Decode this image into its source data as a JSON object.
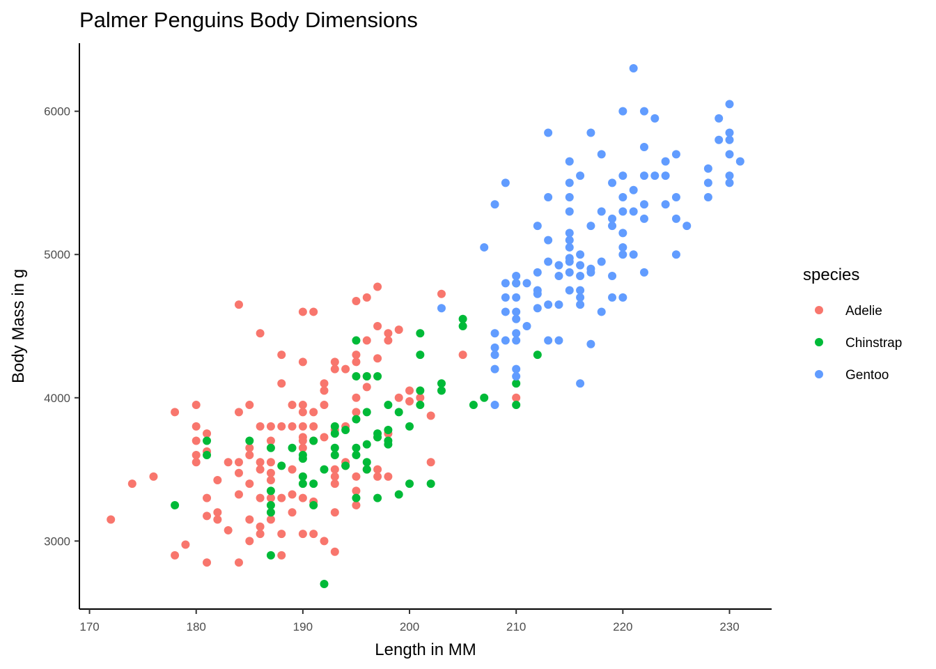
{
  "chart_data": {
    "type": "scatter",
    "title": "Palmer Penguins Body Dimensions",
    "xlabel": "Length in MM",
    "ylabel": "Body Mass in g",
    "xlim": [
      169.05,
      233.95
    ],
    "ylim": [
      2525,
      6475
    ],
    "x_ticks": [
      170,
      180,
      190,
      200,
      210,
      220,
      230
    ],
    "y_ticks": [
      3000,
      4000,
      5000,
      6000
    ],
    "grid": false,
    "legend": {
      "title": "species",
      "position": "right"
    },
    "series": [
      {
        "name": "Adelie",
        "color": "#F8766D",
        "points": [
          [
            172,
            3150
          ],
          [
            174,
            3400
          ],
          [
            176,
            3450
          ],
          [
            178,
            3900
          ],
          [
            178,
            2900
          ],
          [
            179,
            2975
          ],
          [
            180,
            3950
          ],
          [
            180,
            3800
          ],
          [
            180,
            3700
          ],
          [
            180,
            3600
          ],
          [
            180,
            3550
          ],
          [
            181,
            3750
          ],
          [
            181,
            3625
          ],
          [
            181,
            3300
          ],
          [
            181,
            3175
          ],
          [
            181,
            2850
          ],
          [
            182,
            3425
          ],
          [
            182,
            3200
          ],
          [
            182,
            3150
          ],
          [
            183,
            3550
          ],
          [
            183,
            3075
          ],
          [
            184,
            4650
          ],
          [
            184,
            3900
          ],
          [
            184,
            3550
          ],
          [
            184,
            3475
          ],
          [
            184,
            3325
          ],
          [
            184,
            2850
          ],
          [
            185,
            3950
          ],
          [
            185,
            3650
          ],
          [
            185,
            3600
          ],
          [
            185,
            3400
          ],
          [
            185,
            3150
          ],
          [
            185,
            3000
          ],
          [
            186,
            4450
          ],
          [
            186,
            3800
          ],
          [
            186,
            3550
          ],
          [
            186,
            3500
          ],
          [
            186,
            3300
          ],
          [
            186,
            3100
          ],
          [
            186,
            3050
          ],
          [
            187,
            3800
          ],
          [
            187,
            3700
          ],
          [
            187,
            3550
          ],
          [
            187,
            3475
          ],
          [
            187,
            3425
          ],
          [
            187,
            3300
          ],
          [
            187,
            3150
          ],
          [
            188,
            4300
          ],
          [
            188,
            4100
          ],
          [
            188,
            3800
          ],
          [
            188,
            3300
          ],
          [
            188,
            3050
          ],
          [
            188,
            2900
          ],
          [
            189,
            3950
          ],
          [
            189,
            3800
          ],
          [
            189,
            3500
          ],
          [
            189,
            3325
          ],
          [
            189,
            3200
          ],
          [
            190,
            4600
          ],
          [
            190,
            4250
          ],
          [
            190,
            3950
          ],
          [
            190,
            3900
          ],
          [
            190,
            3800
          ],
          [
            190,
            3725
          ],
          [
            190,
            3700
          ],
          [
            190,
            3650
          ],
          [
            190,
            3450
          ],
          [
            190,
            3300
          ],
          [
            190,
            3050
          ],
          [
            191,
            4600
          ],
          [
            191,
            3900
          ],
          [
            191,
            3800
          ],
          [
            191,
            3700
          ],
          [
            191,
            3275
          ],
          [
            191,
            3050
          ],
          [
            192,
            4100
          ],
          [
            192,
            4050
          ],
          [
            192,
            3950
          ],
          [
            192,
            3725
          ],
          [
            192,
            3000
          ],
          [
            193,
            4250
          ],
          [
            193,
            4200
          ],
          [
            193,
            3775
          ],
          [
            193,
            3500
          ],
          [
            193,
            3450
          ],
          [
            193,
            3400
          ],
          [
            193,
            3200
          ],
          [
            193,
            2925
          ],
          [
            194,
            4200
          ],
          [
            194,
            3800
          ],
          [
            194,
            3550
          ],
          [
            194,
            3525
          ],
          [
            195,
            4675
          ],
          [
            195,
            4300
          ],
          [
            195,
            4250
          ],
          [
            195,
            4000
          ],
          [
            195,
            3900
          ],
          [
            195,
            3450
          ],
          [
            195,
            3350
          ],
          [
            195,
            3250
          ],
          [
            196,
            4700
          ],
          [
            196,
            4400
          ],
          [
            196,
            4150
          ],
          [
            196,
            4075
          ],
          [
            196,
            3500
          ],
          [
            197,
            4775
          ],
          [
            197,
            4500
          ],
          [
            197,
            4275
          ],
          [
            197,
            3725
          ],
          [
            197,
            3500
          ],
          [
            197,
            3450
          ],
          [
            198,
            4450
          ],
          [
            198,
            4400
          ],
          [
            198,
            3750
          ],
          [
            198,
            3450
          ],
          [
            199,
            4475
          ],
          [
            199,
            4000
          ],
          [
            200,
            4050
          ],
          [
            200,
            3975
          ],
          [
            201,
            4000
          ],
          [
            202,
            3875
          ],
          [
            202,
            3550
          ],
          [
            203,
            4725
          ],
          [
            205,
            4300
          ],
          [
            210,
            4000
          ]
        ]
      },
      {
        "name": "Chinstrap",
        "color": "#00BA38",
        "points": [
          [
            178,
            3250
          ],
          [
            181,
            3700
          ],
          [
            181,
            3600
          ],
          [
            185,
            3700
          ],
          [
            187,
            3650
          ],
          [
            187,
            3350
          ],
          [
            187,
            3250
          ],
          [
            187,
            3200
          ],
          [
            187,
            2900
          ],
          [
            188,
            3525
          ],
          [
            189,
            3650
          ],
          [
            190,
            3600
          ],
          [
            190,
            3575
          ],
          [
            190,
            3450
          ],
          [
            190,
            3400
          ],
          [
            191,
            3700
          ],
          [
            191,
            3400
          ],
          [
            191,
            3250
          ],
          [
            192,
            3500
          ],
          [
            192,
            2700
          ],
          [
            193,
            3800
          ],
          [
            193,
            3750
          ],
          [
            193,
            3650
          ],
          [
            193,
            3600
          ],
          [
            194,
            3775
          ],
          [
            194,
            3525
          ],
          [
            195,
            4400
          ],
          [
            195,
            4150
          ],
          [
            195,
            3850
          ],
          [
            195,
            3650
          ],
          [
            195,
            3600
          ],
          [
            195,
            3300
          ],
          [
            196,
            4150
          ],
          [
            196,
            3900
          ],
          [
            196,
            3675
          ],
          [
            196,
            3550
          ],
          [
            196,
            3500
          ],
          [
            197,
            4150
          ],
          [
            197,
            3750
          ],
          [
            197,
            3725
          ],
          [
            197,
            3300
          ],
          [
            198,
            3950
          ],
          [
            198,
            3775
          ],
          [
            198,
            3700
          ],
          [
            198,
            3675
          ],
          [
            199,
            3900
          ],
          [
            199,
            3325
          ],
          [
            200,
            3800
          ],
          [
            200,
            3400
          ],
          [
            201,
            4450
          ],
          [
            201,
            4300
          ],
          [
            201,
            4050
          ],
          [
            201,
            3950
          ],
          [
            202,
            3400
          ],
          [
            203,
            4100
          ],
          [
            203,
            4050
          ],
          [
            205,
            4550
          ],
          [
            205,
            4500
          ],
          [
            206,
            3950
          ],
          [
            207,
            4000
          ],
          [
            210,
            4800
          ],
          [
            210,
            4100
          ],
          [
            210,
            3950
          ],
          [
            212,
            4300
          ]
        ]
      },
      {
        "name": "Gentoo",
        "color": "#619CFF",
        "points": [
          [
            203,
            4625
          ],
          [
            207,
            5050
          ],
          [
            208,
            5350
          ],
          [
            208,
            4450
          ],
          [
            208,
            4350
          ],
          [
            208,
            4300
          ],
          [
            208,
            4200
          ],
          [
            208,
            3950
          ],
          [
            209,
            5500
          ],
          [
            209,
            4800
          ],
          [
            209,
            4700
          ],
          [
            209,
            4600
          ],
          [
            209,
            4400
          ],
          [
            210,
            4850
          ],
          [
            210,
            4800
          ],
          [
            210,
            4700
          ],
          [
            210,
            4600
          ],
          [
            210,
            4550
          ],
          [
            210,
            4450
          ],
          [
            210,
            4400
          ],
          [
            210,
            4200
          ],
          [
            210,
            4150
          ],
          [
            211,
            4800
          ],
          [
            211,
            4500
          ],
          [
            212,
            5200
          ],
          [
            212,
            4875
          ],
          [
            212,
            4750
          ],
          [
            212,
            4725
          ],
          [
            212,
            4625
          ],
          [
            213,
            5850
          ],
          [
            213,
            5400
          ],
          [
            213,
            5100
          ],
          [
            213,
            4950
          ],
          [
            213,
            4650
          ],
          [
            213,
            4400
          ],
          [
            214,
            4925
          ],
          [
            214,
            4850
          ],
          [
            214,
            4650
          ],
          [
            214,
            4400
          ],
          [
            215,
            5650
          ],
          [
            215,
            5500
          ],
          [
            215,
            5400
          ],
          [
            215,
            5300
          ],
          [
            215,
            5150
          ],
          [
            215,
            5100
          ],
          [
            215,
            5050
          ],
          [
            215,
            4975
          ],
          [
            215,
            4950
          ],
          [
            215,
            4875
          ],
          [
            215,
            4750
          ],
          [
            216,
            5550
          ],
          [
            216,
            5000
          ],
          [
            216,
            4925
          ],
          [
            216,
            4850
          ],
          [
            216,
            4750
          ],
          [
            216,
            4700
          ],
          [
            216,
            4650
          ],
          [
            216,
            4100
          ],
          [
            217,
            5850
          ],
          [
            217,
            5200
          ],
          [
            217,
            4900
          ],
          [
            217,
            4875
          ],
          [
            217,
            4375
          ],
          [
            218,
            5700
          ],
          [
            218,
            5300
          ],
          [
            218,
            4950
          ],
          [
            218,
            4600
          ],
          [
            219,
            5500
          ],
          [
            219,
            5250
          ],
          [
            219,
            5200
          ],
          [
            219,
            4850
          ],
          [
            219,
            4700
          ],
          [
            220,
            6000
          ],
          [
            220,
            5550
          ],
          [
            220,
            5400
          ],
          [
            220,
            5300
          ],
          [
            220,
            5150
          ],
          [
            220,
            5050
          ],
          [
            220,
            5000
          ],
          [
            220,
            4700
          ],
          [
            221,
            6300
          ],
          [
            221,
            5450
          ],
          [
            221,
            5300
          ],
          [
            221,
            5000
          ],
          [
            222,
            6000
          ],
          [
            222,
            5750
          ],
          [
            222,
            5550
          ],
          [
            222,
            5350
          ],
          [
            222,
            5250
          ],
          [
            222,
            4875
          ],
          [
            223,
            5950
          ],
          [
            223,
            5550
          ],
          [
            224,
            5650
          ],
          [
            224,
            5550
          ],
          [
            224,
            5350
          ],
          [
            225,
            5700
          ],
          [
            225,
            5400
          ],
          [
            225,
            5250
          ],
          [
            225,
            5000
          ],
          [
            226,
            5200
          ],
          [
            228,
            5600
          ],
          [
            228,
            5500
          ],
          [
            228,
            5400
          ],
          [
            229,
            5950
          ],
          [
            229,
            5800
          ],
          [
            230,
            6050
          ],
          [
            230,
            5850
          ],
          [
            230,
            5800
          ],
          [
            230,
            5700
          ],
          [
            230,
            5550
          ],
          [
            230,
            5500
          ],
          [
            231,
            5650
          ]
        ]
      }
    ]
  }
}
